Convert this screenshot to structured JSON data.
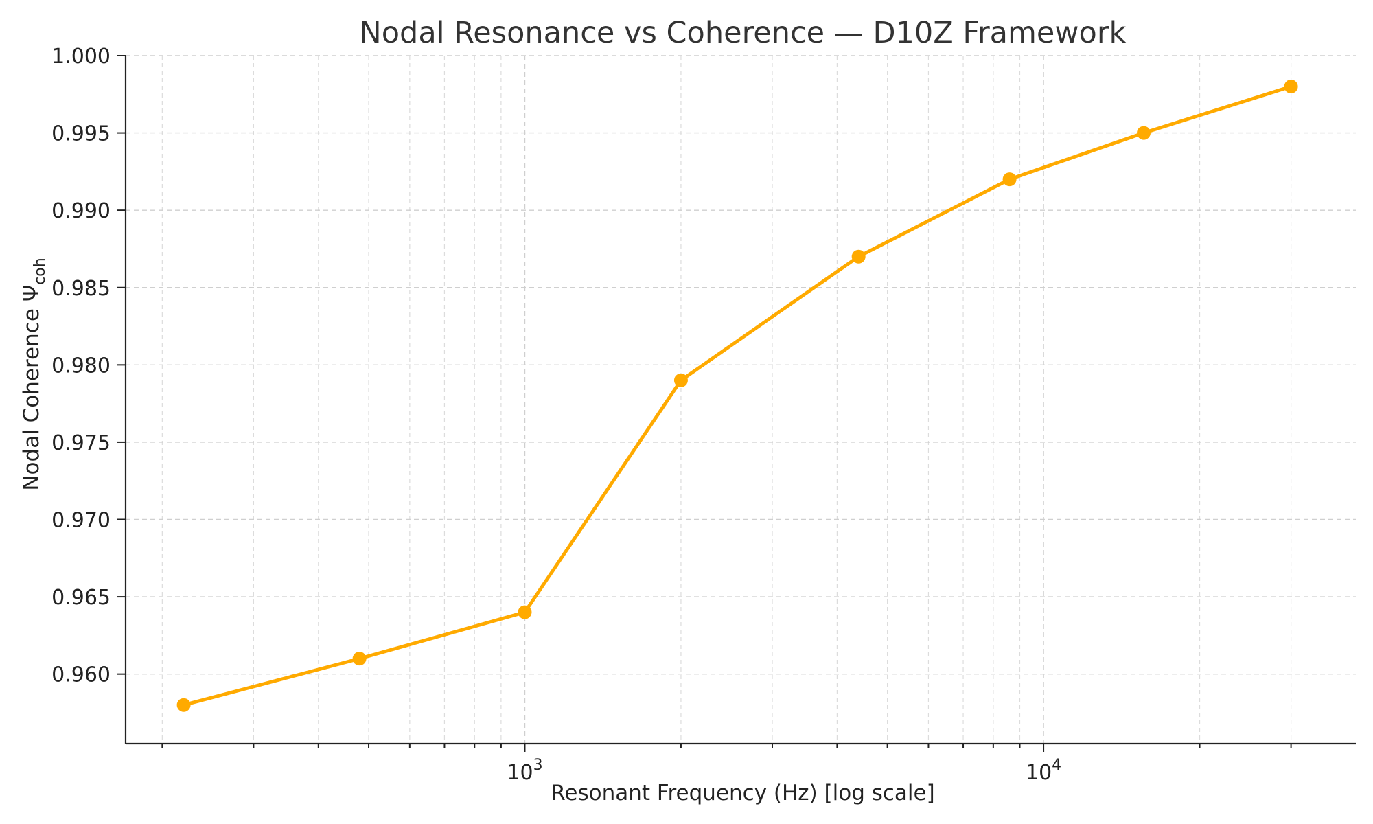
{
  "colors": {
    "series": "#ffaa00",
    "text": "#222222",
    "title": "#333333",
    "grid": "#cfcfcf",
    "background": "#ffffff"
  },
  "chart_data": {
    "type": "line",
    "title": "Nodal Resonance vs Coherence — D10Z Framework",
    "xlabel": "Resonant Frequency (Hz) [log scale]",
    "ylabel_main": "Nodal Coherence Ψ",
    "ylabel_sub": "coh",
    "x_scale": "log",
    "xlim": [
      170,
      40000
    ],
    "ylim": [
      0.9555,
      1.0
    ],
    "grid": true,
    "legend": "none",
    "x_ticks": [
      {
        "value": 1000,
        "base": "10",
        "exp": "3"
      },
      {
        "value": 10000,
        "base": "10",
        "exp": "4"
      }
    ],
    "y_ticks": [
      {
        "value": 0.96,
        "label": "0.960"
      },
      {
        "value": 0.965,
        "label": "0.965"
      },
      {
        "value": 0.97,
        "label": "0.970"
      },
      {
        "value": 0.975,
        "label": "0.975"
      },
      {
        "value": 0.98,
        "label": "0.980"
      },
      {
        "value": 0.985,
        "label": "0.985"
      },
      {
        "value": 0.99,
        "label": "0.990"
      },
      {
        "value": 0.995,
        "label": "0.995"
      },
      {
        "value": 1.0,
        "label": "1.000"
      }
    ],
    "series": [
      {
        "x": [
          220,
          480,
          1000,
          2000,
          4400,
          8600,
          15600,
          30000
        ],
        "y": [
          0.958,
          0.961,
          0.964,
          0.979,
          0.987,
          0.992,
          0.995,
          0.998
        ]
      }
    ]
  }
}
